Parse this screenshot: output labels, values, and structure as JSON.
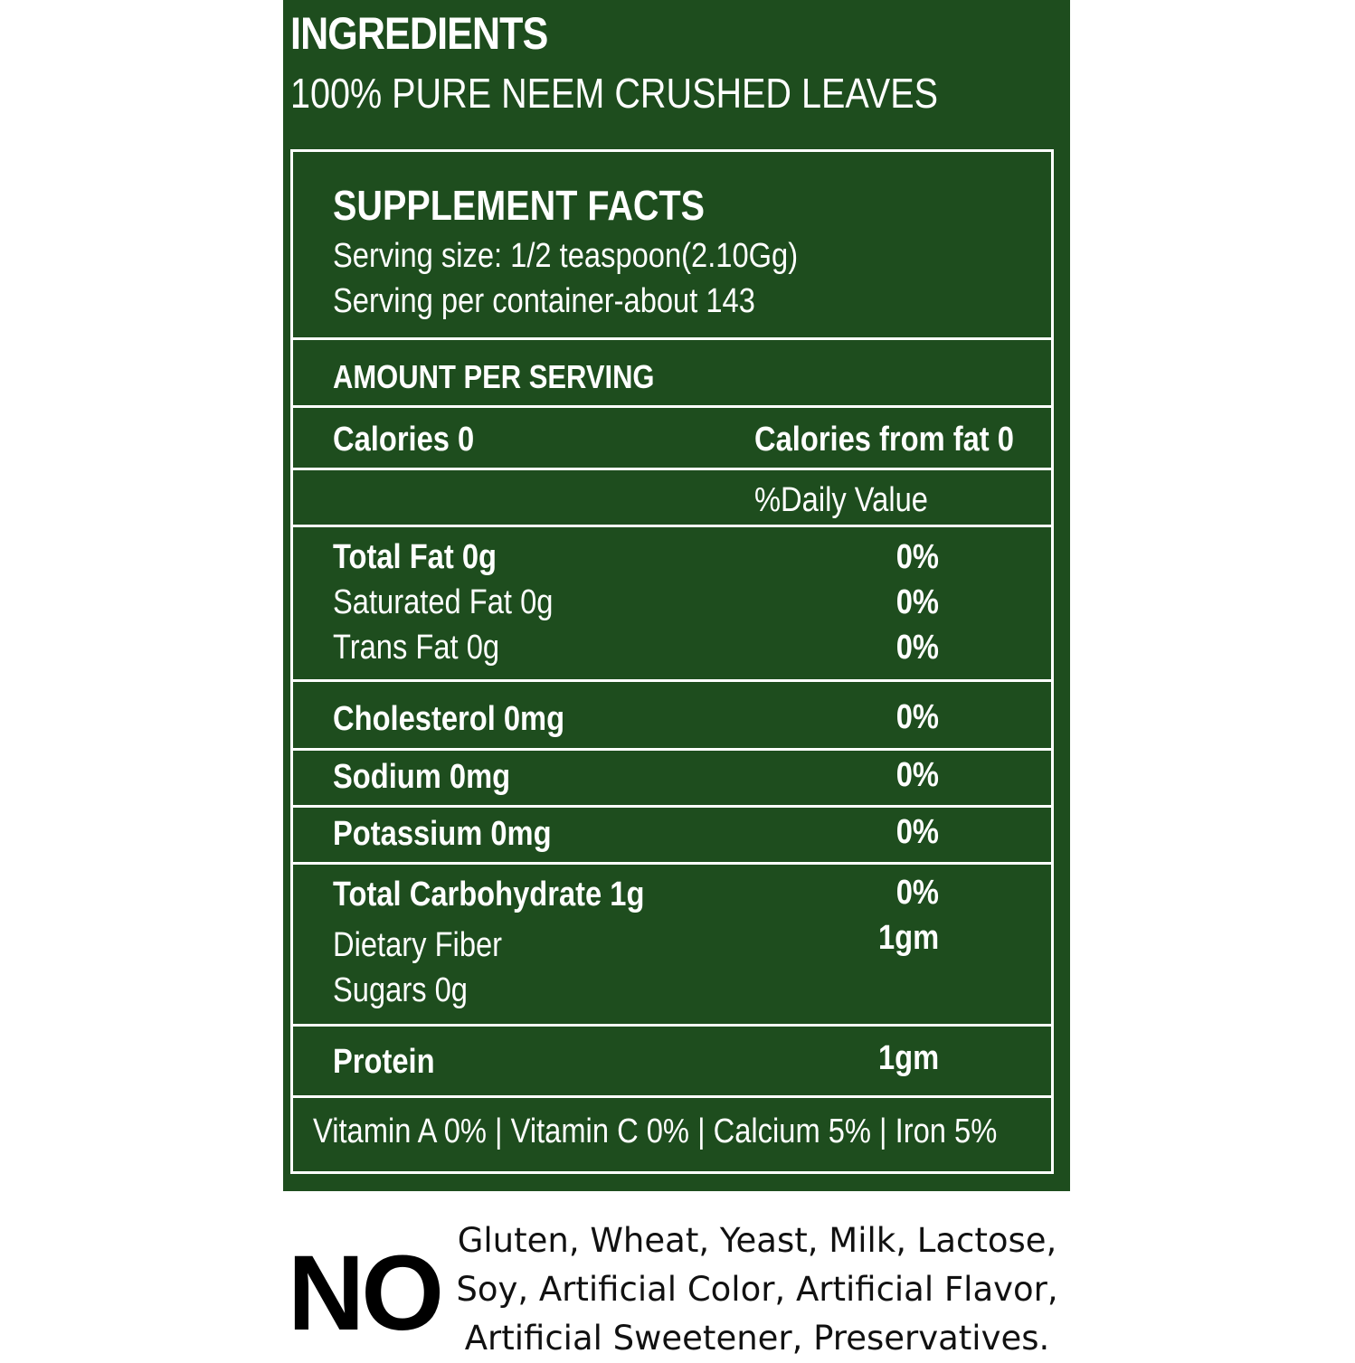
{
  "ingredients": {
    "title": "INGREDIENTS",
    "text": "100% PURE NEEM CRUSHED LEAVES"
  },
  "facts": {
    "title": "SUPPLEMENT FACTS",
    "serving_size": "Serving size: 1/2 teaspoon(2.10Gg)",
    "servings_per_container": "Serving per container-about 143",
    "amount_per_serving": "AMOUNT PER SERVING",
    "calories": "Calories 0",
    "calories_from_fat": "Calories from fat 0",
    "daily_value_header": "%Daily Value",
    "nutrients": {
      "total_fat": {
        "label": "Total Fat 0g",
        "value": "0%"
      },
      "saturated_fat": {
        "label": "Saturated Fat 0g",
        "value": "0%"
      },
      "trans_fat": {
        "label": "Trans Fat 0g",
        "value": "0%"
      },
      "cholesterol": {
        "label": "Cholesterol 0mg",
        "value": "0%"
      },
      "sodium": {
        "label": "Sodium 0mg",
        "value": "0%"
      },
      "potassium": {
        "label": "Potassium 0mg",
        "value": "0%"
      },
      "total_carbohydrate": {
        "label": "Total Carbohydrate 1g",
        "value": "0%"
      },
      "dietary_fiber": {
        "label": "Dietary Fiber",
        "value": "1gm"
      },
      "sugars": {
        "label": "Sugars 0g"
      },
      "protein": {
        "label": "Protein",
        "value": "1gm"
      }
    },
    "vitamins": "Vitamin A 0% | Vitamin C 0% | Calcium 5% | Iron 5%"
  },
  "free_from": {
    "heading": "NO",
    "lines": [
      "Gluten, Wheat, Yeast, Milk, Lactose,",
      "Soy, Artificial Color, Artificial Flavor,",
      "Artificial Sweetener, Preservatives."
    ]
  },
  "colors": {
    "label_background": "#1e4d1e",
    "text": "#ffffff"
  }
}
